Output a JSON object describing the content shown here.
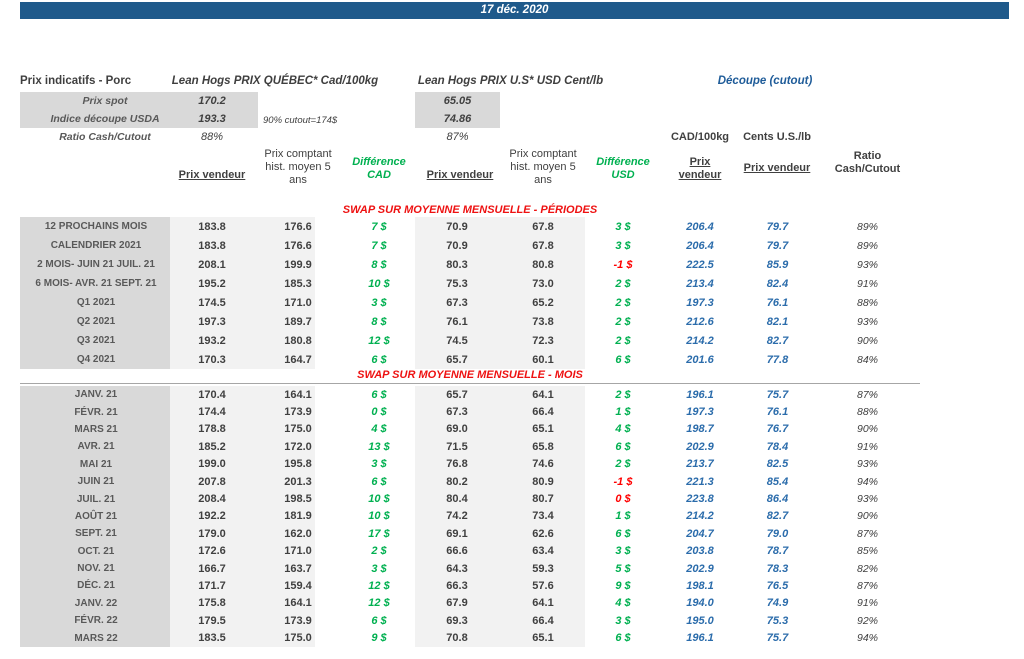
{
  "date_bar": "17 déc. 2020",
  "header": {
    "title": "Prix indicatifs - Porc",
    "quebec_title": "Lean Hogs PRIX QUÉBEC* Cad/100kg",
    "us_title": "Lean Hogs PRIX U.S* USD Cent/lb",
    "cutout_title": "Découpe (cutout)"
  },
  "spot": {
    "rows": [
      {
        "label": "Prix spot",
        "cad": "170.2",
        "usd": "65.05"
      },
      {
        "label": "Indice découpe USDA",
        "cad": "193.3",
        "usd": "74.86"
      }
    ],
    "note": "90% cutout=174$",
    "ratio_label": "Ratio Cash/Cutout",
    "ratio_cad": "88%",
    "ratio_usd": "87%"
  },
  "columns": {
    "pv": "Prix vendeur",
    "pc": "Prix comptant hist. moyen 5 ans",
    "diff_cad": "Différence CAD",
    "diff_usd": "Différence USD",
    "cad100": "CAD/100kg",
    "cents": "Cents U.S./lb",
    "ratio": "Ratio Cash/Cutout"
  },
  "colors": {
    "bar_blue": "#1f5a8b",
    "cutout_blue": "#1f5c99",
    "value_blue": "#2b6cab",
    "diff_green": "#00b050",
    "diff_red": "#ff0000",
    "title_red": "#ee1111",
    "label_bg": "#d9d9d9",
    "band_bg": "#f2f2f2"
  },
  "sections": [
    {
      "title": "SWAP SUR MOYENNE MENSUELLE - PÉRIODES",
      "rows": [
        {
          "label": "12 PROCHAINS MOIS",
          "pvc": "183.8",
          "pcc": "176.6",
          "dc": "7 $",
          "pvu": "70.9",
          "pcu": "67.8",
          "du": "3 $",
          "cad": "206.4",
          "cus": "79.7",
          "ratio": "89%"
        },
        {
          "label": "CALENDRIER 2021",
          "pvc": "183.8",
          "pcc": "176.6",
          "dc": "7 $",
          "pvu": "70.9",
          "pcu": "67.8",
          "du": "3 $",
          "cad": "206.4",
          "cus": "79.7",
          "ratio": "89%"
        },
        {
          "label": "2 MOIS- JUIN 21 JUIL. 21",
          "pvc": "208.1",
          "pcc": "199.9",
          "dc": "8 $",
          "pvu": "80.3",
          "pcu": "80.8",
          "du": "-1 $",
          "dur": true,
          "cad": "222.5",
          "cus": "85.9",
          "ratio": "93%"
        },
        {
          "label": "6 MOIS- AVR. 21 SEPT. 21",
          "pvc": "195.2",
          "pcc": "185.3",
          "dc": "10 $",
          "pvu": "75.3",
          "pcu": "73.0",
          "du": "2 $",
          "cad": "213.4",
          "cus": "82.4",
          "ratio": "91%"
        },
        {
          "label": "Q1 2021",
          "pvc": "174.5",
          "pcc": "171.0",
          "dc": "3 $",
          "pvu": "67.3",
          "pcu": "65.2",
          "du": "2 $",
          "cad": "197.3",
          "cus": "76.1",
          "ratio": "88%"
        },
        {
          "label": "Q2 2021",
          "pvc": "197.3",
          "pcc": "189.7",
          "dc": "8 $",
          "pvu": "76.1",
          "pcu": "73.8",
          "du": "2 $",
          "cad": "212.6",
          "cus": "82.1",
          "ratio": "93%"
        },
        {
          "label": "Q3 2021",
          "pvc": "193.2",
          "pcc": "180.8",
          "dc": "12 $",
          "pvu": "74.5",
          "pcu": "72.3",
          "du": "2 $",
          "cad": "214.2",
          "cus": "82.7",
          "ratio": "90%"
        },
        {
          "label": "Q4 2021",
          "pvc": "170.3",
          "pcc": "164.7",
          "dc": "6 $",
          "pvu": "65.7",
          "pcu": "60.1",
          "du": "6 $",
          "cad": "201.6",
          "cus": "77.8",
          "ratio": "84%"
        }
      ]
    },
    {
      "title": "SWAP SUR MOYENNE MENSUELLE - MOIS",
      "rows": [
        {
          "label": "JANV. 21",
          "pvc": "170.4",
          "pcc": "164.1",
          "dc": "6 $",
          "pvu": "65.7",
          "pcu": "64.1",
          "du": "2 $",
          "cad": "196.1",
          "cus": "75.7",
          "ratio": "87%"
        },
        {
          "label": "FÉVR. 21",
          "pvc": "174.4",
          "pcc": "173.9",
          "dc": "0 $",
          "pvu": "67.3",
          "pcu": "66.4",
          "du": "1 $",
          "cad": "197.3",
          "cus": "76.1",
          "ratio": "88%"
        },
        {
          "label": "MARS 21",
          "pvc": "178.8",
          "pcc": "175.0",
          "dc": "4 $",
          "pvu": "69.0",
          "pcu": "65.1",
          "du": "4 $",
          "cad": "198.7",
          "cus": "76.7",
          "ratio": "90%"
        },
        {
          "label": "AVR. 21",
          "pvc": "185.2",
          "pcc": "172.0",
          "dc": "13 $",
          "pvu": "71.5",
          "pcu": "65.8",
          "du": "6 $",
          "cad": "202.9",
          "cus": "78.4",
          "ratio": "91%"
        },
        {
          "label": "MAI 21",
          "pvc": "199.0",
          "pcc": "195.8",
          "dc": "3 $",
          "pvu": "76.8",
          "pcu": "74.6",
          "du": "2 $",
          "cad": "213.7",
          "cus": "82.5",
          "ratio": "93%"
        },
        {
          "label": "JUIN 21",
          "pvc": "207.8",
          "pcc": "201.3",
          "dc": "6 $",
          "pvu": "80.2",
          "pcu": "80.9",
          "du": "-1 $",
          "dur": true,
          "cad": "221.3",
          "cus": "85.4",
          "ratio": "94%"
        },
        {
          "label": "JUIL. 21",
          "pvc": "208.4",
          "pcc": "198.5",
          "dc": "10 $",
          "pvu": "80.4",
          "pcu": "80.7",
          "du": "0 $",
          "dur": true,
          "cad": "223.8",
          "cus": "86.4",
          "ratio": "93%"
        },
        {
          "label": "AOÛT 21",
          "pvc": "192.2",
          "pcc": "181.9",
          "dc": "10 $",
          "pvu": "74.2",
          "pcu": "73.4",
          "du": "1 $",
          "cad": "214.2",
          "cus": "82.7",
          "ratio": "90%"
        },
        {
          "label": "SEPT. 21",
          "pvc": "179.0",
          "pcc": "162.0",
          "dc": "17 $",
          "pvu": "69.1",
          "pcu": "62.6",
          "du": "6 $",
          "cad": "204.7",
          "cus": "79.0",
          "ratio": "87%"
        },
        {
          "label": "OCT. 21",
          "pvc": "172.6",
          "pcc": "171.0",
          "dc": "2 $",
          "pvu": "66.6",
          "pcu": "63.4",
          "du": "3 $",
          "cad": "203.8",
          "cus": "78.7",
          "ratio": "85%"
        },
        {
          "label": "NOV. 21",
          "pvc": "166.7",
          "pcc": "163.7",
          "dc": "3 $",
          "pvu": "64.3",
          "pcu": "59.3",
          "du": "5 $",
          "cad": "202.9",
          "cus": "78.3",
          "ratio": "82%"
        },
        {
          "label": "DÉC. 21",
          "pvc": "171.7",
          "pcc": "159.4",
          "dc": "12 $",
          "pvu": "66.3",
          "pcu": "57.6",
          "du": "9 $",
          "cad": "198.1",
          "cus": "76.5",
          "ratio": "87%"
        },
        {
          "label": "JANV. 22",
          "pvc": "175.8",
          "pcc": "164.1",
          "dc": "12 $",
          "pvu": "67.9",
          "pcu": "64.1",
          "du": "4 $",
          "cad": "194.0",
          "cus": "74.9",
          "ratio": "91%"
        },
        {
          "label": "FÉVR. 22",
          "pvc": "179.5",
          "pcc": "173.9",
          "dc": "6 $",
          "pvu": "69.3",
          "pcu": "66.4",
          "du": "3 $",
          "cad": "195.0",
          "cus": "75.3",
          "ratio": "92%"
        },
        {
          "label": "MARS 22",
          "pvc": "183.5",
          "pcc": "175.0",
          "dc": "9 $",
          "pvu": "70.8",
          "pcu": "65.1",
          "du": "6 $",
          "cad": "196.1",
          "cus": "75.7",
          "ratio": "94%"
        }
      ]
    }
  ]
}
